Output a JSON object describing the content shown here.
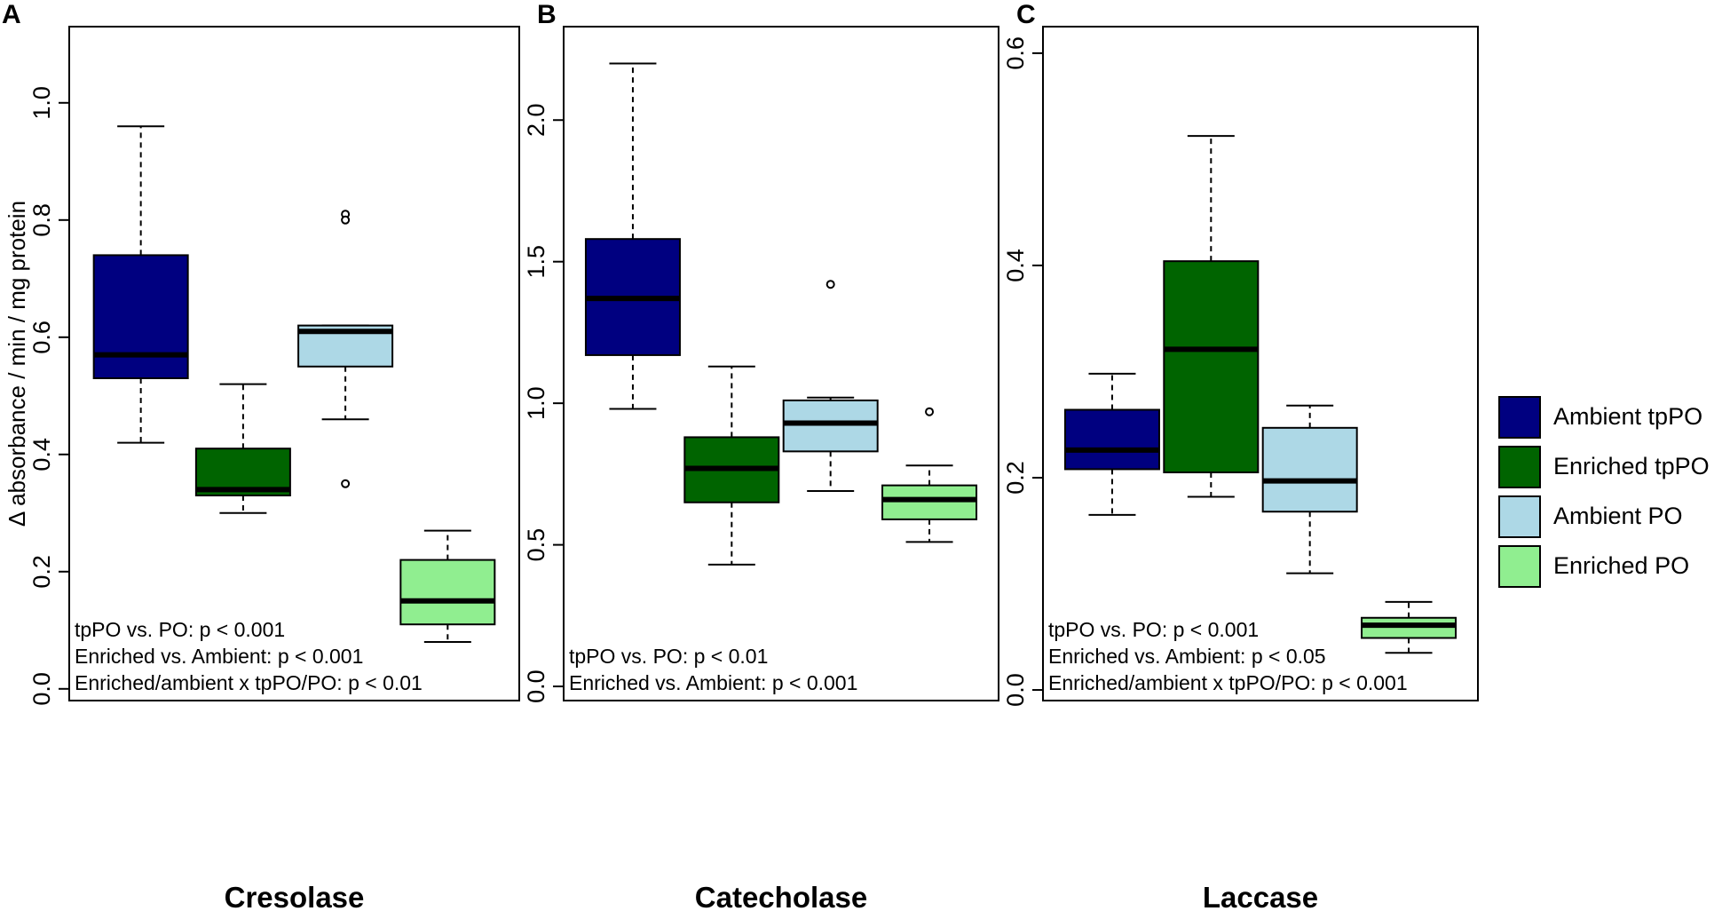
{
  "colors": {
    "ambient_tppo": "#000080",
    "enriched_tppo": "#006400",
    "ambient_po": "#add8e6",
    "enriched_po": "#90ee90"
  },
  "legend": [
    {
      "label": "Ambient tpPO",
      "color": "#000080"
    },
    {
      "label": "Enriched tpPO",
      "color": "#006400"
    },
    {
      "label": "Ambient PO",
      "color": "#add8e6"
    },
    {
      "label": "Enriched PO",
      "color": "#90ee90"
    }
  ],
  "chart_data": [
    {
      "type": "box",
      "panel_letter": "A",
      "title": "Cresolase",
      "ylabel": "Δ absorbance / min / mg protein",
      "ylim": [
        -0.02,
        1.13
      ],
      "yticks": [
        0.0,
        0.2,
        0.4,
        0.6,
        0.8,
        1.0
      ],
      "ytick_labels": [
        "0.0",
        "0.2",
        "0.4",
        "0.6",
        "0.8",
        "1.0"
      ],
      "groups": [
        {
          "name": "Ambient tpPO",
          "color": "#000080",
          "whisker_low": 0.42,
          "q1": 0.53,
          "median": 0.57,
          "q3": 0.74,
          "whisker_high": 0.96,
          "outliers": []
        },
        {
          "name": "Enriched tpPO",
          "color": "#006400",
          "whisker_low": 0.3,
          "q1": 0.33,
          "median": 0.34,
          "q3": 0.41,
          "whisker_high": 0.52,
          "outliers": []
        },
        {
          "name": "Ambient PO",
          "color": "#add8e6",
          "whisker_low": 0.46,
          "q1": 0.55,
          "median": 0.61,
          "q3": 0.62,
          "whisker_high": 0.62,
          "outliers": [
            0.81,
            0.8,
            0.35
          ]
        },
        {
          "name": "Enriched PO",
          "color": "#90ee90",
          "whisker_low": 0.08,
          "q1": 0.11,
          "median": 0.15,
          "q3": 0.22,
          "whisker_high": 0.27,
          "outliers": []
        }
      ],
      "annotations": [
        "tpPO vs. PO: p < 0.001",
        "Enriched vs. Ambient: p < 0.001",
        "Enriched/ambient x tpPO/PO: p < 0.01"
      ]
    },
    {
      "type": "box",
      "panel_letter": "B",
      "title": "Catecholase",
      "ylabel": "",
      "ylim": [
        -0.05,
        2.33
      ],
      "yticks": [
        0.0,
        0.5,
        1.0,
        1.5,
        2.0
      ],
      "ytick_labels": [
        "0.0",
        "0.5",
        "1.0",
        "1.5",
        "2.0"
      ],
      "groups": [
        {
          "name": "Ambient tpPO",
          "color": "#000080",
          "whisker_low": 0.98,
          "q1": 1.17,
          "median": 1.37,
          "q3": 1.58,
          "whisker_high": 2.2,
          "outliers": []
        },
        {
          "name": "Enriched tpPO",
          "color": "#006400",
          "whisker_low": 0.43,
          "q1": 0.65,
          "median": 0.77,
          "q3": 0.88,
          "whisker_high": 1.13,
          "outliers": []
        },
        {
          "name": "Ambient PO",
          "color": "#add8e6",
          "whisker_low": 0.69,
          "q1": 0.83,
          "median": 0.93,
          "q3": 1.01,
          "whisker_high": 1.02,
          "outliers": [
            1.42
          ]
        },
        {
          "name": "Enriched PO",
          "color": "#90ee90",
          "whisker_low": 0.51,
          "q1": 0.59,
          "median": 0.66,
          "q3": 0.71,
          "whisker_high": 0.78,
          "outliers": [
            0.97
          ]
        }
      ],
      "annotations": [
        "tpPO vs. PO: p < 0.01",
        "Enriched vs. Ambient: p < 0.001"
      ]
    },
    {
      "type": "box",
      "panel_letter": "C",
      "title": "Laccase",
      "ylabel": "",
      "ylim": [
        -0.01,
        0.625
      ],
      "yticks": [
        0.0,
        0.2,
        0.4,
        0.6
      ],
      "ytick_labels": [
        "0.0",
        "0.2",
        "0.4",
        "0.6"
      ],
      "groups": [
        {
          "name": "Ambient tpPO",
          "color": "#000080",
          "whisker_low": 0.165,
          "q1": 0.208,
          "median": 0.226,
          "q3": 0.264,
          "whisker_high": 0.298,
          "outliers": []
        },
        {
          "name": "Enriched tpPO",
          "color": "#006400",
          "whisker_low": 0.182,
          "q1": 0.205,
          "median": 0.321,
          "q3": 0.404,
          "whisker_high": 0.522,
          "outliers": []
        },
        {
          "name": "Ambient PO",
          "color": "#add8e6",
          "whisker_low": 0.11,
          "q1": 0.168,
          "median": 0.197,
          "q3": 0.247,
          "whisker_high": 0.268,
          "outliers": []
        },
        {
          "name": "Enriched PO",
          "color": "#90ee90",
          "whisker_low": 0.035,
          "q1": 0.049,
          "median": 0.061,
          "q3": 0.068,
          "whisker_high": 0.083,
          "outliers": []
        }
      ],
      "annotations": [
        "tpPO vs. PO: p < 0.001",
        "Enriched vs. Ambient: p < 0.05",
        "Enriched/ambient x tpPO/PO: p < 0.001"
      ]
    }
  ]
}
